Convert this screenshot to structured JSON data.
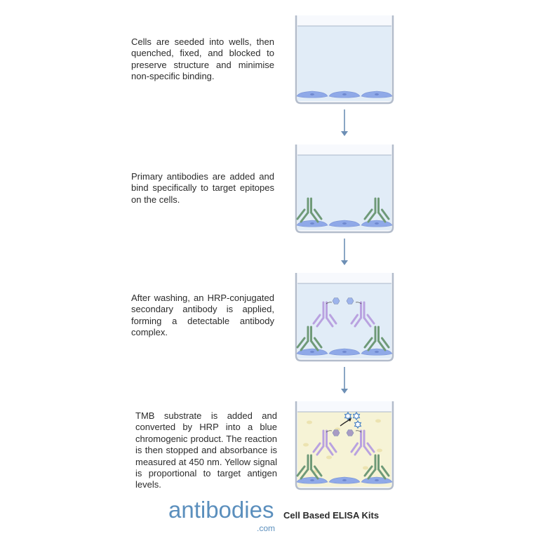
{
  "steps": [
    {
      "text": "Cells are seeded into wells, then quenched, fixed, and blocked to preserve structure and minimise non-specific binding.",
      "well_color": "#e1ecf7",
      "antibodies": "none"
    },
    {
      "text": "Primary antibodies are added and bind specifically to target epitopes on the cells.",
      "well_color": "#e1ecf7",
      "antibodies": "primary"
    },
    {
      "text": "After washing, an HRP-conjugated secondary antibody is applied, forming a detectable antibody complex.",
      "well_color": "#e1ecf7",
      "antibodies": "primary+secondary-hrp"
    },
    {
      "text": "TMB substrate is added and converted by HRP into a blue chromogenic product. The reaction is then stopped  and absorbance is measured at 450 nm. Yellow signal is proportional to target antigen levels.",
      "well_color": "#f6f3d6",
      "antibodies": "primary+secondary-hrp+tmb"
    }
  ],
  "colors": {
    "primary_antibody": "#6f9a78",
    "secondary_antibody": "#b9a2e0",
    "cell": "#8fa9e8",
    "hrp": "#9db4ec",
    "arrow": "#6d8fb5",
    "well_border": "#b3bccb"
  },
  "footer": {
    "logo": "antibodies",
    "logo_suffix": ".com",
    "tagline": "Cell Based ELISA Kits"
  }
}
